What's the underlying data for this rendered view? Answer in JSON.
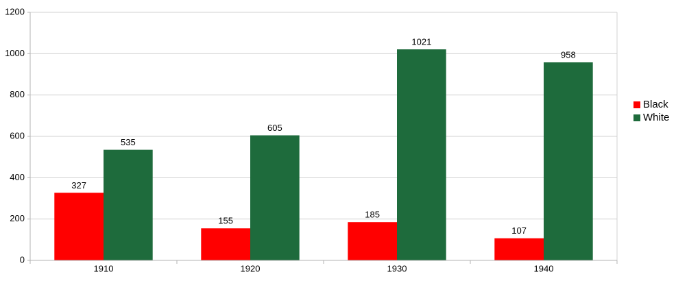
{
  "chart_data": {
    "type": "bar",
    "categories": [
      "1910",
      "1920",
      "1930",
      "1940"
    ],
    "series": [
      {
        "name": "Black",
        "color": "#ff0000",
        "values": [
          327,
          155,
          185,
          107
        ]
      },
      {
        "name": "White",
        "color": "#1e6b3c",
        "values": [
          535,
          605,
          1021,
          958
        ]
      }
    ],
    "ylim": [
      0,
      1200
    ],
    "yticks": [
      0,
      200,
      400,
      600,
      800,
      1000,
      1200
    ],
    "grid": true,
    "legend": "right"
  }
}
